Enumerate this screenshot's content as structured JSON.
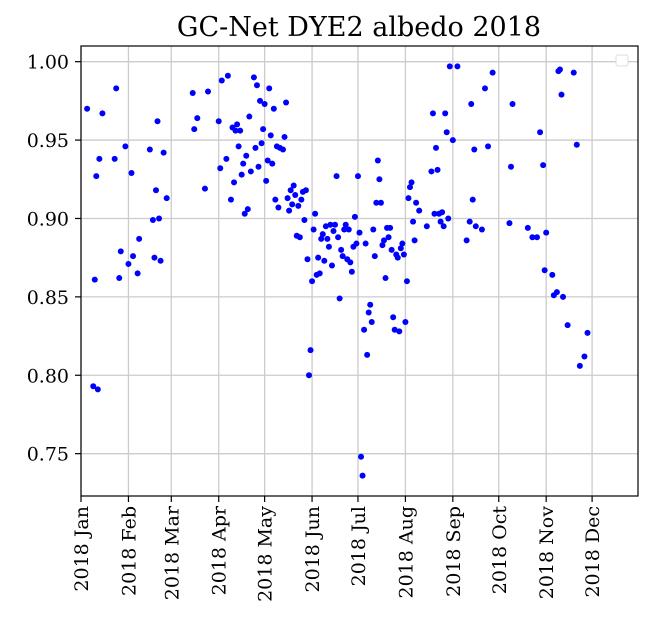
{
  "chart_data": {
    "type": "scatter",
    "title": "GC-Net DYE2 albedo 2018",
    "xlabel": "",
    "ylabel": "",
    "x_ticks": [
      "2018 Jan",
      "2018 Feb",
      "2018 Mar",
      "2018 Apr",
      "2018 May",
      "2018 Jun",
      "2018 Jul",
      "2018 Aug",
      "2018 Sep",
      "2018 Oct",
      "2018 Nov",
      "2018 Dec"
    ],
    "y_ticks": [
      "0.75",
      "0.80",
      "0.85",
      "0.90",
      "0.95",
      "1.00"
    ],
    "xlim": [
      "2018-01-01",
      "2018-12-31"
    ],
    "ylim": [
      0.723,
      1.01
    ],
    "grid": true,
    "legend": "top-right (empty)",
    "marker_color": "#0000ff",
    "series": [
      {
        "points": [
          [
            "2018-01-05",
            0.97
          ],
          [
            "2018-01-09",
            0.793
          ],
          [
            "2018-01-10",
            0.861
          ],
          [
            "2018-01-11",
            0.927
          ],
          [
            "2018-01-12",
            0.791
          ],
          [
            "2018-01-13",
            0.938
          ],
          [
            "2018-01-15",
            0.967
          ],
          [
            "2018-01-23",
            0.938
          ],
          [
            "2018-01-24",
            0.983
          ],
          [
            "2018-01-26",
            0.862
          ],
          [
            "2018-01-27",
            0.879
          ],
          [
            "2018-01-30",
            0.946
          ],
          [
            "2018-02-01",
            0.871
          ],
          [
            "2018-02-03",
            0.929
          ],
          [
            "2018-02-04",
            0.876
          ],
          [
            "2018-02-07",
            0.865
          ],
          [
            "2018-02-08",
            0.887
          ],
          [
            "2018-02-15",
            0.944
          ],
          [
            "2018-02-17",
            0.899
          ],
          [
            "2018-02-18",
            0.875
          ],
          [
            "2018-02-19",
            0.918
          ],
          [
            "2018-02-20",
            0.962
          ],
          [
            "2018-02-21",
            0.9
          ],
          [
            "2018-02-22",
            0.873
          ],
          [
            "2018-02-24",
            0.942
          ],
          [
            "2018-02-26",
            0.913
          ],
          [
            "2018-03-15",
            0.98
          ],
          [
            "2018-03-16",
            0.957
          ],
          [
            "2018-03-18",
            0.964
          ],
          [
            "2018-03-23",
            0.919
          ],
          [
            "2018-03-25",
            0.981
          ],
          [
            "2018-04-01",
            0.962
          ],
          [
            "2018-04-02",
            0.932
          ],
          [
            "2018-04-03",
            0.988
          ],
          [
            "2018-04-06",
            0.938
          ],
          [
            "2018-04-07",
            0.991
          ],
          [
            "2018-04-09",
            0.912
          ],
          [
            "2018-04-10",
            0.958
          ],
          [
            "2018-04-11",
            0.923
          ],
          [
            "2018-04-12",
            0.956
          ],
          [
            "2018-04-13",
            0.96
          ],
          [
            "2018-04-14",
            0.946
          ],
          [
            "2018-04-15",
            0.956
          ],
          [
            "2018-04-16",
            0.928
          ],
          [
            "2018-04-17",
            0.935
          ],
          [
            "2018-04-18",
            0.903
          ],
          [
            "2018-04-19",
            0.94
          ],
          [
            "2018-04-20",
            0.906
          ],
          [
            "2018-04-21",
            0.965
          ],
          [
            "2018-04-22",
            0.93
          ],
          [
            "2018-04-24",
            0.99
          ],
          [
            "2018-04-25",
            0.945
          ],
          [
            "2018-04-26",
            0.985
          ],
          [
            "2018-04-27",
            0.933
          ],
          [
            "2018-04-28",
            0.975
          ],
          [
            "2018-04-29",
            0.948
          ],
          [
            "2018-04-30",
            0.957
          ],
          [
            "2018-05-01",
            0.973
          ],
          [
            "2018-05-02",
            0.924
          ],
          [
            "2018-05-03",
            0.937
          ],
          [
            "2018-05-04",
            0.983
          ],
          [
            "2018-05-05",
            0.953
          ],
          [
            "2018-05-06",
            0.935
          ],
          [
            "2018-05-07",
            0.97
          ],
          [
            "2018-05-08",
            0.912
          ],
          [
            "2018-05-09",
            0.946
          ],
          [
            "2018-05-10",
            0.907
          ],
          [
            "2018-05-11",
            0.945
          ],
          [
            "2018-05-13",
            0.944
          ],
          [
            "2018-05-14",
            0.952
          ],
          [
            "2018-05-15",
            0.974
          ],
          [
            "2018-05-16",
            0.913
          ],
          [
            "2018-05-17",
            0.905
          ],
          [
            "2018-05-18",
            0.918
          ],
          [
            "2018-05-19",
            0.909
          ],
          [
            "2018-05-20",
            0.921
          ],
          [
            "2018-05-21",
            0.915
          ],
          [
            "2018-05-22",
            0.889
          ],
          [
            "2018-05-23",
            0.908
          ],
          [
            "2018-05-24",
            0.888
          ],
          [
            "2018-05-25",
            0.912
          ],
          [
            "2018-05-26",
            0.917
          ],
          [
            "2018-05-27",
            0.899
          ],
          [
            "2018-05-28",
            0.918
          ],
          [
            "2018-05-29",
            0.874
          ],
          [
            "2018-05-30",
            0.8
          ],
          [
            "2018-05-31",
            0.816
          ],
          [
            "2018-06-01",
            0.86
          ],
          [
            "2018-06-02",
            0.893
          ],
          [
            "2018-06-03",
            0.903
          ],
          [
            "2018-06-04",
            0.864
          ],
          [
            "2018-06-05",
            0.875
          ],
          [
            "2018-06-06",
            0.865
          ],
          [
            "2018-06-07",
            0.887
          ],
          [
            "2018-06-08",
            0.89
          ],
          [
            "2018-06-09",
            0.873
          ],
          [
            "2018-06-10",
            0.895
          ],
          [
            "2018-06-11",
            0.887
          ],
          [
            "2018-06-12",
            0.882
          ],
          [
            "2018-06-13",
            0.896
          ],
          [
            "2018-06-14",
            0.87
          ],
          [
            "2018-06-15",
            0.892
          ],
          [
            "2018-06-16",
            0.896
          ],
          [
            "2018-06-17",
            0.927
          ],
          [
            "2018-06-18",
            0.888
          ],
          [
            "2018-06-19",
            0.849
          ],
          [
            "2018-06-20",
            0.88
          ],
          [
            "2018-06-21",
            0.876
          ],
          [
            "2018-06-22",
            0.893
          ],
          [
            "2018-06-23",
            0.896
          ],
          [
            "2018-06-24",
            0.874
          ],
          [
            "2018-06-25",
            0.893
          ],
          [
            "2018-06-26",
            0.872
          ],
          [
            "2018-06-27",
            0.866
          ],
          [
            "2018-06-28",
            0.882
          ],
          [
            "2018-06-29",
            0.901
          ],
          [
            "2018-06-30",
            0.884
          ],
          [
            "2018-07-01",
            0.927
          ],
          [
            "2018-07-02",
            0.891
          ],
          [
            "2018-07-03",
            0.748
          ],
          [
            "2018-07-04",
            0.736
          ],
          [
            "2018-07-05",
            0.829
          ],
          [
            "2018-07-06",
            0.884
          ],
          [
            "2018-07-07",
            0.813
          ],
          [
            "2018-07-08",
            0.84
          ],
          [
            "2018-07-09",
            0.845
          ],
          [
            "2018-07-10",
            0.834
          ],
          [
            "2018-07-11",
            0.893
          ],
          [
            "2018-07-12",
            0.876
          ],
          [
            "2018-07-13",
            0.91
          ],
          [
            "2018-07-14",
            0.937
          ],
          [
            "2018-07-15",
            0.925
          ],
          [
            "2018-07-16",
            0.91
          ],
          [
            "2018-07-17",
            0.883
          ],
          [
            "2018-07-18",
            0.886
          ],
          [
            "2018-07-19",
            0.862
          ],
          [
            "2018-07-20",
            0.894
          ],
          [
            "2018-07-21",
            0.888
          ],
          [
            "2018-07-22",
            0.894
          ],
          [
            "2018-07-23",
            0.88
          ],
          [
            "2018-07-24",
            0.837
          ],
          [
            "2018-07-25",
            0.829
          ],
          [
            "2018-07-26",
            0.877
          ],
          [
            "2018-07-27",
            0.875
          ],
          [
            "2018-07-28",
            0.828
          ],
          [
            "2018-07-29",
            0.881
          ],
          [
            "2018-07-30",
            0.884
          ],
          [
            "2018-07-31",
            0.877
          ],
          [
            "2018-08-01",
            0.834
          ],
          [
            "2018-08-02",
            0.86
          ],
          [
            "2018-08-03",
            0.913
          ],
          [
            "2018-08-04",
            0.92
          ],
          [
            "2018-08-05",
            0.923
          ],
          [
            "2018-08-06",
            0.898
          ],
          [
            "2018-08-07",
            0.886
          ],
          [
            "2018-08-08",
            0.91
          ],
          [
            "2018-08-10",
            0.905
          ],
          [
            "2018-08-15",
            0.895
          ],
          [
            "2018-08-18",
            0.93
          ],
          [
            "2018-08-19",
            0.967
          ],
          [
            "2018-08-20",
            0.903
          ],
          [
            "2018-08-21",
            0.945
          ],
          [
            "2018-08-22",
            0.931
          ],
          [
            "2018-08-23",
            0.903
          ],
          [
            "2018-08-24",
            0.898
          ],
          [
            "2018-08-25",
            0.904
          ],
          [
            "2018-08-26",
            0.895
          ],
          [
            "2018-08-27",
            0.967
          ],
          [
            "2018-08-28",
            0.955
          ],
          [
            "2018-08-29",
            0.9
          ],
          [
            "2018-08-30",
            0.997
          ],
          [
            "2018-09-01",
            0.95
          ],
          [
            "2018-09-04",
            0.997
          ],
          [
            "2018-09-10",
            0.886
          ],
          [
            "2018-09-12",
            0.898
          ],
          [
            "2018-09-13",
            0.973
          ],
          [
            "2018-09-14",
            0.912
          ],
          [
            "2018-09-15",
            0.944
          ],
          [
            "2018-09-16",
            0.895
          ],
          [
            "2018-09-20",
            0.893
          ],
          [
            "2018-09-22",
            0.983
          ],
          [
            "2018-09-24",
            0.946
          ],
          [
            "2018-09-27",
            0.993
          ],
          [
            "2018-10-08",
            0.897
          ],
          [
            "2018-10-09",
            0.933
          ],
          [
            "2018-10-10",
            0.973
          ],
          [
            "2018-10-20",
            0.894
          ],
          [
            "2018-10-23",
            0.888
          ],
          [
            "2018-10-26",
            0.888
          ],
          [
            "2018-10-28",
            0.955
          ],
          [
            "2018-10-30",
            0.934
          ],
          [
            "2018-10-31",
            0.867
          ],
          [
            "2018-11-01",
            0.891
          ],
          [
            "2018-11-05",
            0.864
          ],
          [
            "2018-11-06",
            0.851
          ],
          [
            "2018-11-08",
            0.853
          ],
          [
            "2018-11-09",
            0.994
          ],
          [
            "2018-11-10",
            0.995
          ],
          [
            "2018-11-11",
            0.979
          ],
          [
            "2018-11-12",
            0.85
          ],
          [
            "2018-11-15",
            0.832
          ],
          [
            "2018-11-19",
            0.993
          ],
          [
            "2018-11-21",
            0.947
          ],
          [
            "2018-11-23",
            0.806
          ],
          [
            "2018-11-26",
            0.812
          ],
          [
            "2018-11-28",
            0.827
          ]
        ]
      }
    ]
  }
}
